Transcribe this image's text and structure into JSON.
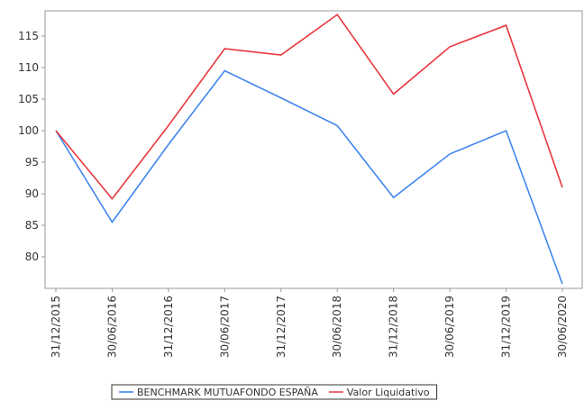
{
  "chart_data": {
    "type": "line",
    "categories": [
      "31/12/2015",
      "30/06/2016",
      "31/12/2016",
      "30/06/2017",
      "31/12/2017",
      "30/06/2018",
      "31/12/2018",
      "30/06/2019",
      "31/12/2019",
      "30/06/2020"
    ],
    "series": [
      {
        "name": "BENCHMARK MUTUAFONDO ESPAÑA",
        "color": "#3f86ee",
        "values": [
          100,
          85.5,
          97.8,
          109.5,
          105.2,
          100.8,
          89.4,
          96.3,
          100,
          75.7
        ]
      },
      {
        "name": "Valor Liquidativo",
        "color": "#e8373d",
        "values": [
          100,
          89.2,
          100.8,
          113,
          112,
          118.4,
          105.8,
          113.3,
          116.7,
          91
        ]
      }
    ],
    "ylim": [
      75,
      119
    ],
    "yticks": [
      80,
      85,
      90,
      95,
      100,
      105,
      110,
      115
    ]
  }
}
